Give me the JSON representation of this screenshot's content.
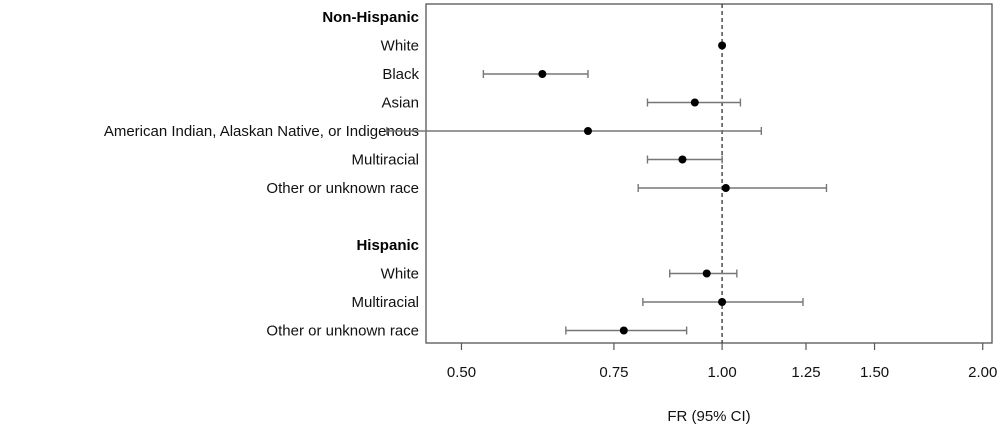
{
  "chart_data": {
    "type": "forest",
    "xlabel": "FR (95% CI)",
    "x_scale": "log",
    "xlim": [
      0.455,
      2.05
    ],
    "x_ticks": [
      {
        "value": 0.5,
        "label": "0.50"
      },
      {
        "value": 0.75,
        "label": "0.75"
      },
      {
        "value": 1.0,
        "label": "1.00"
      },
      {
        "value": 1.25,
        "label": "1.25"
      },
      {
        "value": 1.5,
        "label": "1.50"
      },
      {
        "value": 2.0,
        "label": "2.00"
      }
    ],
    "reference_line": 1.0,
    "groups": [
      {
        "name": "Non-Hispanic",
        "rows": [
          {
            "label": "White",
            "estimate": 1.0,
            "lower": null,
            "upper": null
          },
          {
            "label": "Black",
            "estimate": 0.62,
            "lower": 0.53,
            "upper": 0.7
          },
          {
            "label": "Asian",
            "estimate": 0.93,
            "lower": 0.82,
            "upper": 1.05
          },
          {
            "label": "American Indian, Alaskan Native, or Indigenous",
            "estimate": 0.7,
            "lower": 0.41,
            "upper": 1.11
          },
          {
            "label": "Multiracial",
            "estimate": 0.9,
            "lower": 0.82,
            "upper": 1.0
          },
          {
            "label": "Other or unknown race",
            "estimate": 1.01,
            "lower": 0.8,
            "upper": 1.32
          }
        ]
      },
      {
        "name": "Hispanic",
        "rows": [
          {
            "label": "White",
            "estimate": 0.96,
            "lower": 0.87,
            "upper": 1.04
          },
          {
            "label": "Multiracial",
            "estimate": 1.0,
            "lower": 0.81,
            "upper": 1.24
          },
          {
            "label": "Other or unknown race",
            "estimate": 0.77,
            "lower": 0.66,
            "upper": 0.91
          }
        ]
      }
    ]
  }
}
